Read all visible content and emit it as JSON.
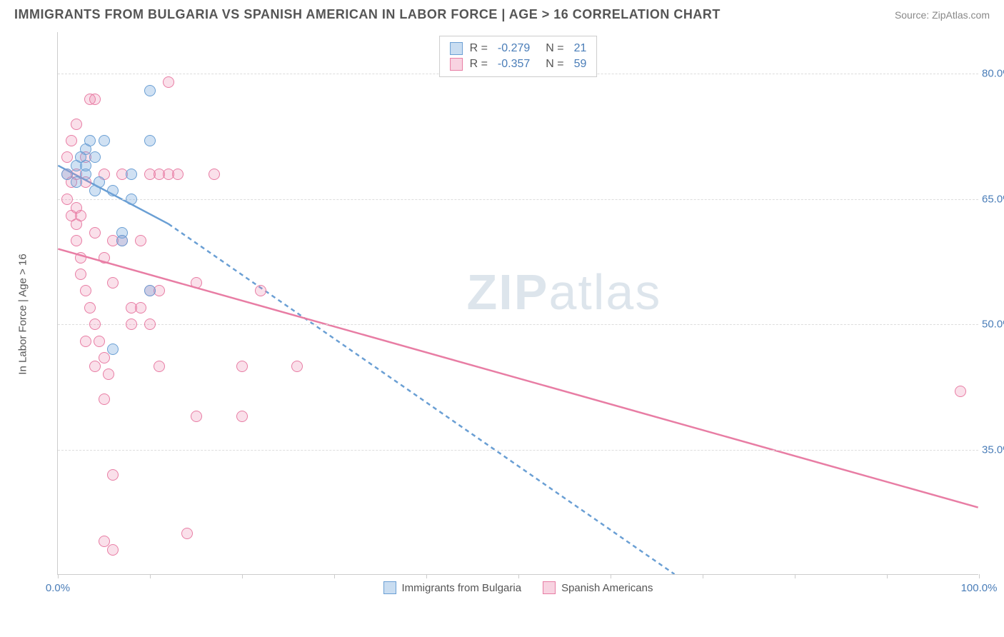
{
  "header": {
    "title": "IMMIGRANTS FROM BULGARIA VS SPANISH AMERICAN IN LABOR FORCE | AGE > 16 CORRELATION CHART",
    "source": "Source: ZipAtlas.com"
  },
  "watermark": {
    "part1": "ZIP",
    "part2": "atlas"
  },
  "chart": {
    "type": "scatter",
    "y_axis_label": "In Labor Force | Age > 16",
    "xlim": [
      0,
      100
    ],
    "ylim": [
      20,
      85
    ],
    "y_ticks": [
      35.0,
      50.0,
      65.0,
      80.0
    ],
    "y_tick_labels": [
      "35.0%",
      "50.0%",
      "65.0%",
      "80.0%"
    ],
    "x_ticks": [
      0,
      10,
      20,
      30,
      40,
      50,
      60,
      70,
      80,
      90,
      100
    ],
    "x_tick_labels": {
      "0": "0.0%",
      "100": "100.0%"
    },
    "grid_color": "#dddddd",
    "axis_color": "#cccccc",
    "tick_label_color": "#4a7db8",
    "background_color": "#ffffff",
    "series": [
      {
        "name": "Immigrants from Bulgaria",
        "color": "#6a9fd4",
        "fill": "rgba(120,170,220,0.35)",
        "r_value": "-0.279",
        "n_value": "21",
        "trend": {
          "x1": 0,
          "y1": 69,
          "x2": 12,
          "y2": 62,
          "dash_to_x": 67,
          "dash_to_y": 20
        },
        "points": [
          [
            1,
            68
          ],
          [
            2,
            69
          ],
          [
            3,
            71
          ],
          [
            3.5,
            72
          ],
          [
            4,
            66
          ],
          [
            5,
            72
          ],
          [
            6,
            66
          ],
          [
            8,
            65
          ],
          [
            10,
            78
          ],
          [
            10,
            72
          ],
          [
            3,
            68
          ],
          [
            2.5,
            70
          ],
          [
            4.5,
            67
          ],
          [
            7,
            61
          ],
          [
            7,
            60
          ],
          [
            8,
            68
          ],
          [
            10,
            54
          ],
          [
            6,
            47
          ],
          [
            3,
            69
          ],
          [
            2,
            67
          ],
          [
            4,
            70
          ]
        ]
      },
      {
        "name": "Spanish Americans",
        "color": "#e87da4",
        "fill": "rgba(235,130,170,0.25)",
        "r_value": "-0.357",
        "n_value": "59",
        "trend": {
          "x1": 0,
          "y1": 59,
          "x2": 100,
          "y2": 28
        },
        "points": [
          [
            1,
            68
          ],
          [
            1.5,
            67
          ],
          [
            2,
            68
          ],
          [
            2,
            64
          ],
          [
            2.5,
            63
          ],
          [
            3,
            70
          ],
          [
            3,
            67
          ],
          [
            3.5,
            77
          ],
          [
            4,
            77
          ],
          [
            4,
            61
          ],
          [
            5,
            68
          ],
          [
            5,
            58
          ],
          [
            6,
            60
          ],
          [
            6,
            55
          ],
          [
            7,
            68
          ],
          [
            7,
            60
          ],
          [
            8,
            52
          ],
          [
            8,
            50
          ],
          [
            9,
            60
          ],
          [
            9,
            52
          ],
          [
            10,
            54
          ],
          [
            10,
            50
          ],
          [
            11,
            68
          ],
          [
            11,
            54
          ],
          [
            12,
            79
          ],
          [
            13,
            68
          ],
          [
            15,
            55
          ],
          [
            17,
            68
          ],
          [
            3,
            48
          ],
          [
            4,
            45
          ],
          [
            5,
            41
          ],
          [
            2,
            62
          ],
          [
            2.5,
            58
          ],
          [
            6,
            23
          ],
          [
            5,
            24
          ],
          [
            6,
            32
          ],
          [
            14,
            25
          ],
          [
            11,
            45
          ],
          [
            15,
            39
          ],
          [
            20,
            45
          ],
          [
            22,
            54
          ],
          [
            20,
            39
          ],
          [
            26,
            45
          ],
          [
            98,
            42
          ],
          [
            1,
            65
          ],
          [
            1.5,
            63
          ],
          [
            2,
            60
          ],
          [
            2.5,
            56
          ],
          [
            3,
            54
          ],
          [
            3.5,
            52
          ],
          [
            4,
            50
          ],
          [
            4.5,
            48
          ],
          [
            5,
            46
          ],
          [
            5.5,
            44
          ],
          [
            1,
            70
          ],
          [
            1.5,
            72
          ],
          [
            2,
            74
          ],
          [
            10,
            68
          ],
          [
            12,
            68
          ]
        ]
      }
    ]
  },
  "legend_top": {
    "rows": [
      {
        "swatch": "blue",
        "r_label": "R =",
        "r_value": "-0.279",
        "n_label": "N =",
        "n_value": "21"
      },
      {
        "swatch": "pink",
        "r_label": "R =",
        "r_value": "-0.357",
        "n_label": "N =",
        "n_value": "59"
      }
    ]
  },
  "legend_bottom": {
    "items": [
      {
        "swatch": "blue",
        "label": "Immigrants from Bulgaria"
      },
      {
        "swatch": "pink",
        "label": "Spanish Americans"
      }
    ]
  }
}
